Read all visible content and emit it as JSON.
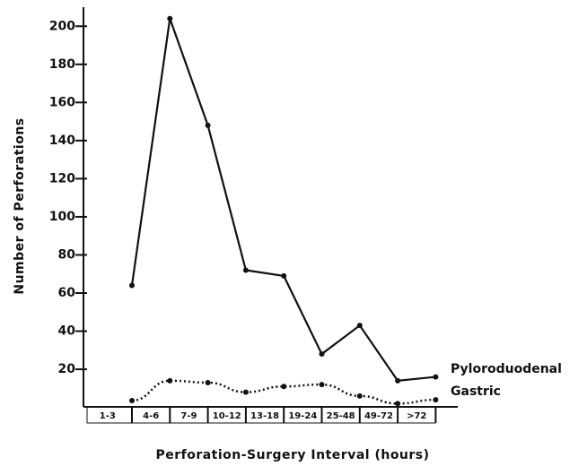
{
  "chart_data": {
    "type": "line",
    "xlabel": "Perforation-Surgery Interval (hours)",
    "ylabel": "Number of Perforations",
    "categories": [
      "1-3",
      "4-6",
      "7-9",
      "10-12",
      "13-18",
      "19-24",
      "25-48",
      "49-72",
      ">72"
    ],
    "series": [
      {
        "name": "Pyloroduodenal",
        "color": "#111111",
        "style": "solid",
        "values": [
          64,
          204,
          148,
          72,
          69,
          28,
          43,
          14,
          16
        ]
      },
      {
        "name": "Gastric",
        "color": "#111111",
        "style": "dotted",
        "values": [
          3.6,
          14,
          13,
          8,
          11,
          12,
          6,
          2,
          4
        ]
      }
    ],
    "ylim": [
      0,
      210
    ],
    "yticks": [
      20,
      40,
      60,
      80,
      100,
      120,
      140,
      160,
      180,
      200
    ]
  }
}
